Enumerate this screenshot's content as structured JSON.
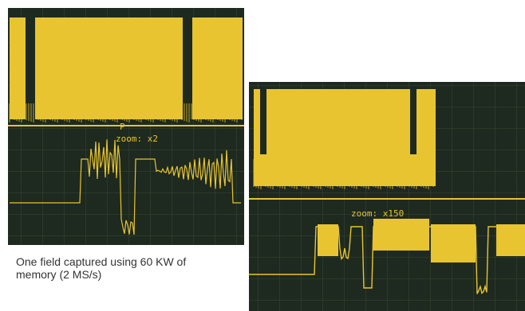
{
  "left_scope": {
    "marker": "P",
    "zoom_label": "zoom: x2"
  },
  "right_scope": {
    "zoom_label": "zoom: x150"
  },
  "caption": {
    "lines": [
      "One field captured using 60 KW of",
      "memory (2 MS/s)"
    ]
  }
}
